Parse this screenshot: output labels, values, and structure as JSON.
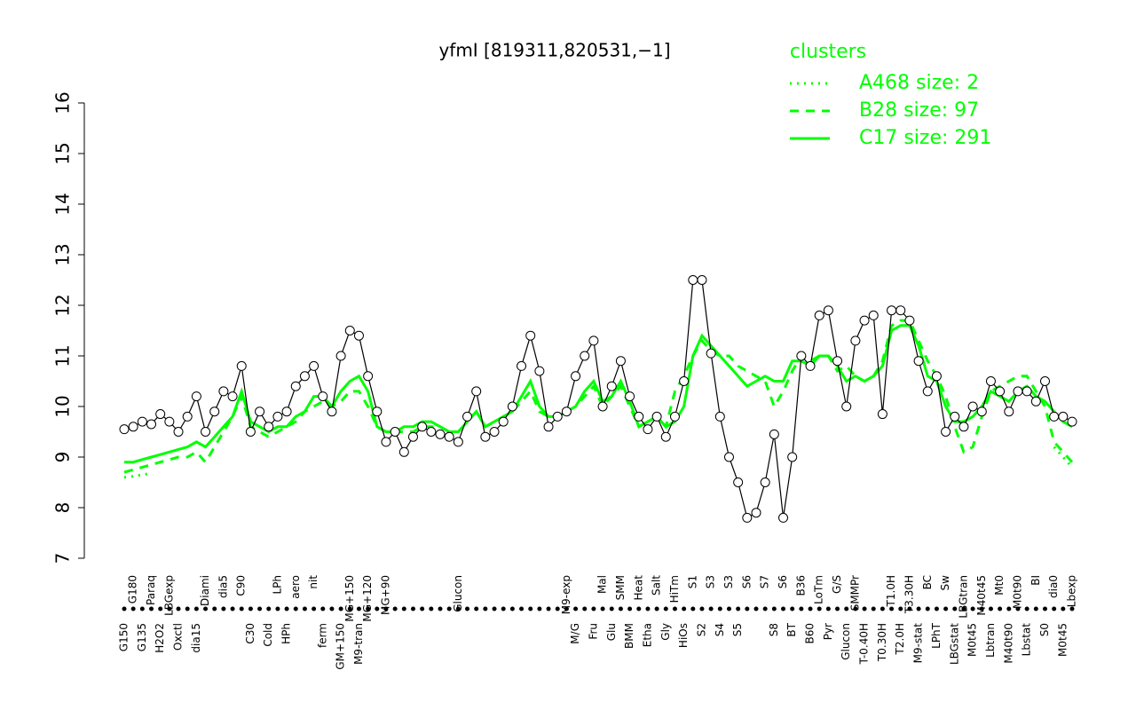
{
  "chart_data": {
    "type": "line",
    "title": "yfmI [819311,820531,−1]",
    "categories": [
      "G150",
      "G180",
      "G135",
      "Paraq",
      "H2O2",
      "LBGexp",
      "Oxctl",
      null,
      "dia15",
      "Diami",
      null,
      "dia5",
      null,
      "C90",
      "C30",
      null,
      "Cold",
      "LPh",
      "HPh",
      "aero",
      null,
      "nit",
      "ferm",
      null,
      "GM+150",
      "MG+150",
      "M9-tran",
      "MG+120",
      null,
      "MG+90",
      null,
      null,
      null,
      null,
      null,
      null,
      null,
      "Glucon",
      null,
      null,
      null,
      null,
      null,
      null,
      null,
      null,
      null,
      null,
      null,
      "M9-exp",
      "M/G",
      null,
      "Fru",
      "Mal",
      "Glu",
      "SMM",
      "BMM",
      "Heat",
      "Etha",
      "Salt",
      "Gly",
      "HiTm",
      "HiOs",
      "S1",
      "S2",
      "S3",
      "S4",
      "S3",
      "S5",
      "S6",
      null,
      "S7",
      "S8",
      "S6",
      "BT",
      "B36",
      "B60",
      "LoTm",
      "Pyr",
      "G/S",
      "Glucon",
      "SMMPr",
      "T-0.40H",
      null,
      "T0.30H",
      "T1.0H",
      "T2.0H",
      "T3.30H",
      "M9-stat",
      "BC",
      "LPhT",
      "Sw",
      "LBGstat",
      "LBGtran",
      "M0t45",
      "M40t45",
      "Lbtran",
      "Mt0",
      "M40t90",
      "M0t90",
      "Lbstat",
      "BI",
      "S0",
      "dia0",
      "M0t45",
      "Lbexp"
    ],
    "values": [
      9.55,
      9.6,
      9.7,
      9.65,
      9.85,
      9.7,
      9.5,
      9.8,
      10.2,
      9.5,
      9.9,
      10.3,
      10.2,
      10.8,
      9.5,
      9.9,
      9.6,
      9.8,
      9.9,
      10.4,
      10.6,
      10.8,
      10.2,
      9.9,
      11.0,
      11.5,
      11.4,
      10.6,
      9.9,
      9.3,
      9.5,
      9.1,
      9.4,
      9.6,
      9.5,
      9.45,
      9.4,
      9.3,
      9.8,
      10.3,
      9.4,
      9.5,
      9.7,
      10.0,
      10.8,
      11.4,
      10.7,
      9.6,
      9.8,
      9.9,
      10.6,
      11.0,
      11.3,
      10.0,
      10.4,
      10.9,
      10.2,
      9.8,
      9.55,
      9.8,
      9.4,
      9.8,
      10.5,
      12.5,
      12.5,
      11.05,
      9.8,
      9.0,
      8.5,
      7.8,
      7.9,
      8.5,
      9.45,
      7.8,
      9.0,
      11.0,
      10.8,
      11.8,
      11.9,
      10.9,
      10.0,
      11.3,
      11.7,
      11.8,
      9.85,
      11.9,
      11.9,
      11.7,
      10.9,
      10.3,
      10.6,
      9.5,
      9.8,
      9.6,
      10.0,
      9.9,
      10.5,
      10.3,
      9.9,
      10.3,
      10.3,
      10.1,
      10.5,
      9.8,
      9.8,
      9.7
    ],
    "color": "#000000",
    "legend_title": "clusters",
    "legend_position": "top-right",
    "series": [
      {
        "name": "A468 size: 2",
        "color": "#00ff00",
        "line_style": "dotted",
        "values": [
          8.6,
          8.62,
          8.65,
          8.68,
          null,
          null,
          null,
          null,
          null,
          null,
          null,
          null,
          null,
          null,
          null,
          null,
          null,
          null,
          null,
          null,
          null,
          null,
          null,
          null,
          null,
          null,
          null,
          null,
          null,
          null,
          null,
          null,
          null,
          null,
          null,
          null,
          null,
          null,
          null,
          null,
          null,
          null,
          null,
          null,
          null,
          null,
          null,
          null,
          null,
          null,
          null,
          null,
          null,
          null,
          null,
          null,
          null,
          null,
          null,
          null,
          null,
          null,
          null,
          null,
          null,
          null,
          null,
          null,
          null,
          null,
          null,
          null,
          null,
          null,
          null,
          null,
          null,
          null,
          null,
          null,
          null,
          null,
          null,
          null,
          null,
          null,
          null,
          null,
          null,
          null,
          null,
          null,
          null,
          null,
          null,
          null,
          null,
          null,
          null,
          null,
          null,
          null,
          null,
          9.2,
          9.0,
          8.8
        ]
      },
      {
        "name": "B28 size: 97",
        "color": "#00ff00",
        "line_style": "dashed",
        "values": [
          8.7,
          8.75,
          8.8,
          8.85,
          8.9,
          8.95,
          9.0,
          9.0,
          9.1,
          8.9,
          9.2,
          9.5,
          9.8,
          10.2,
          9.6,
          9.5,
          9.4,
          9.5,
          9.6,
          9.7,
          9.9,
          10.0,
          10.1,
          10.0,
          10.1,
          10.3,
          10.3,
          10.0,
          9.6,
          9.5,
          9.5,
          9.5,
          9.5,
          9.6,
          9.6,
          9.6,
          9.5,
          9.5,
          9.7,
          9.9,
          9.6,
          9.7,
          9.8,
          9.9,
          10.1,
          10.3,
          9.9,
          9.8,
          9.8,
          9.9,
          10.0,
          10.2,
          10.4,
          10.0,
          10.2,
          10.4,
          10.0,
          9.6,
          9.7,
          9.8,
          9.6,
          10.3,
          10.6,
          11.0,
          11.3,
          11.1,
          11.0,
          11.0,
          10.8,
          10.7,
          10.6,
          10.5,
          10.0,
          10.3,
          10.7,
          11.0,
          10.9,
          11.0,
          11.0,
          10.7,
          10.8,
          10.6,
          10.5,
          10.6,
          10.9,
          11.6,
          11.7,
          11.7,
          11.3,
          10.9,
          10.6,
          10.2,
          9.6,
          9.1,
          9.2,
          9.8,
          10.3,
          10.4,
          10.5,
          10.6,
          10.6,
          10.3,
          10.0,
          9.3,
          9.1,
          8.9
        ]
      },
      {
        "name": "C17 size: 291",
        "color": "#00ff00",
        "line_style": "solid",
        "values": [
          8.9,
          8.9,
          8.95,
          9.0,
          9.05,
          9.1,
          9.15,
          9.2,
          9.3,
          9.2,
          9.4,
          9.6,
          9.8,
          10.3,
          9.7,
          9.6,
          9.5,
          9.6,
          9.6,
          9.8,
          9.9,
          10.2,
          10.2,
          10.0,
          10.3,
          10.5,
          10.6,
          10.3,
          9.6,
          9.5,
          9.5,
          9.6,
          9.6,
          9.7,
          9.7,
          9.6,
          9.5,
          9.5,
          9.7,
          9.9,
          9.6,
          9.7,
          9.8,
          9.9,
          10.2,
          10.5,
          10.0,
          9.8,
          9.8,
          9.9,
          10.0,
          10.3,
          10.5,
          10.1,
          10.2,
          10.5,
          10.1,
          9.6,
          9.7,
          9.8,
          9.6,
          9.7,
          10.0,
          11.0,
          11.4,
          11.2,
          11.0,
          10.8,
          10.6,
          10.4,
          10.5,
          10.6,
          10.5,
          10.5,
          10.9,
          10.9,
          10.8,
          11.0,
          11.0,
          10.8,
          10.5,
          10.6,
          10.5,
          10.6,
          10.8,
          11.5,
          11.6,
          11.6,
          11.2,
          10.6,
          10.5,
          10.0,
          9.7,
          9.7,
          9.8,
          10.0,
          10.3,
          10.2,
          10.1,
          10.3,
          10.4,
          10.2,
          10.1,
          9.9,
          9.7,
          9.6
        ]
      }
    ],
    "ylim": [
      7,
      16
    ],
    "yticks": [
      7,
      8,
      9,
      10,
      11,
      12,
      13,
      14,
      15,
      16
    ]
  }
}
